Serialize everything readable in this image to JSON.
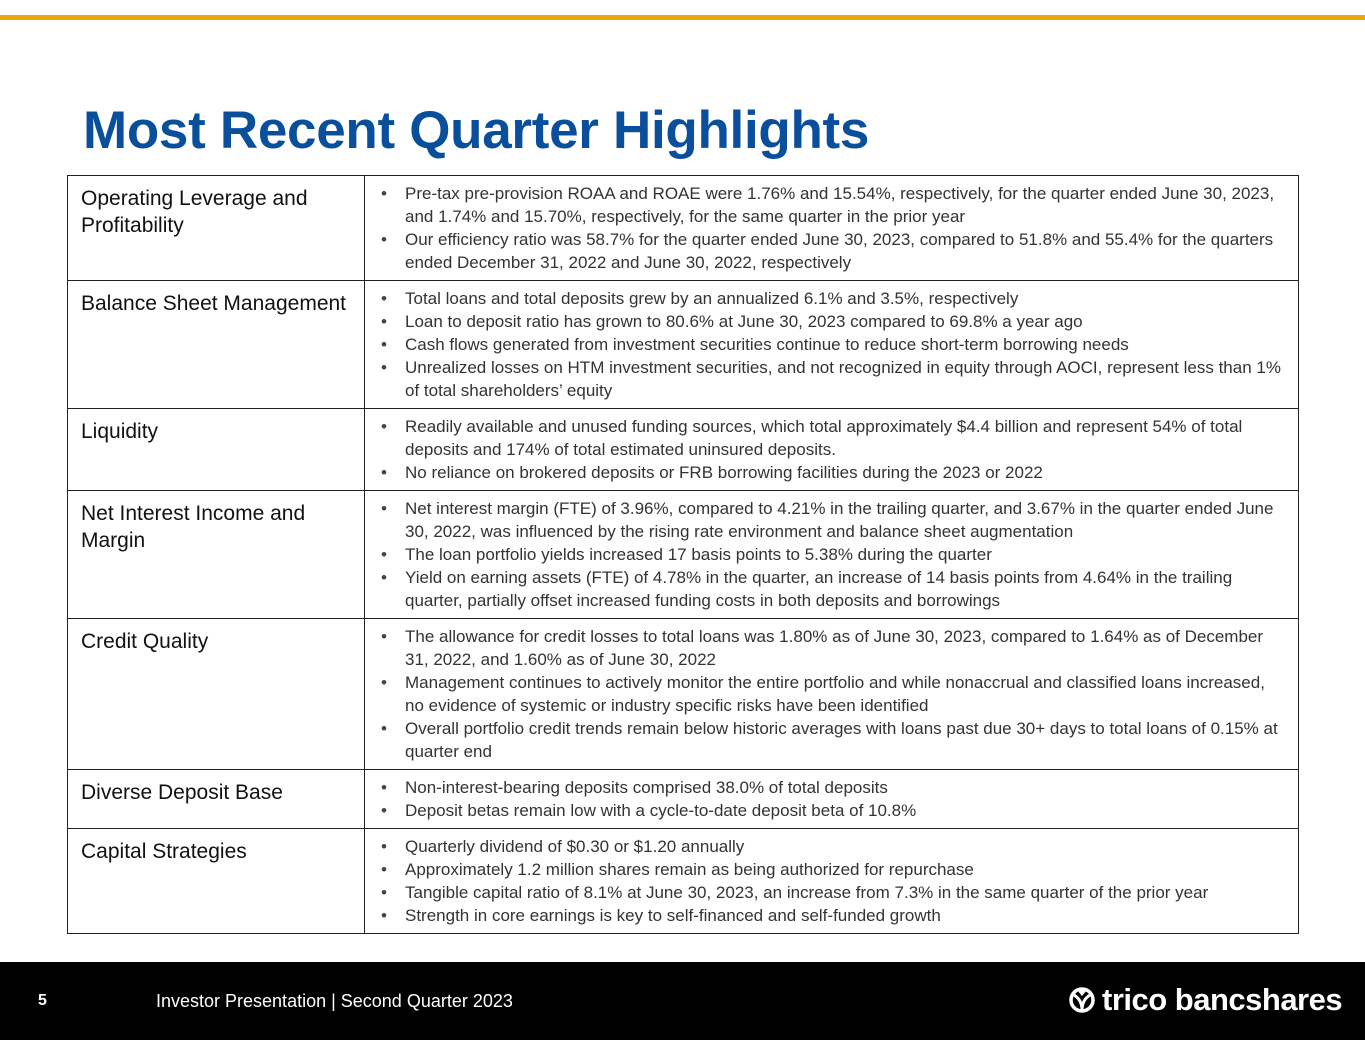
{
  "title": "Most Recent Quarter Highlights",
  "rows": [
    {
      "label": "Operating Leverage and Profitability",
      "bullets": [
        "Pre-tax pre-provision ROAA and ROAE were 1.76% and 15.54%, respectively, for the quarter ended June 30, 2023, and 1.74% and 15.70%, respectively, for the same quarter in the prior year",
        "Our efficiency ratio was 58.7% for the quarter ended June 30, 2023, compared to 51.8% and 55.4% for the quarters ended December 31, 2022 and June 30, 2022, respectively"
      ]
    },
    {
      "label": "Balance Sheet Management",
      "bullets": [
        "Total loans and total deposits grew by an annualized 6.1% and 3.5%, respectively",
        "Loan to deposit ratio has grown to 80.6% at June 30, 2023 compared to 69.8% a year ago",
        "Cash flows generated from investment securities continue to reduce short-term borrowing needs",
        "Unrealized losses on HTM investment securities, and not recognized in equity through AOCI, represent less than 1% of total shareholders’ equity"
      ]
    },
    {
      "label": "Liquidity",
      "bullets": [
        "Readily available and unused funding sources, which total approximately $4.4 billion and represent 54% of total deposits and 174% of total estimated uninsured deposits.",
        "No reliance on brokered deposits or FRB borrowing facilities during the 2023 or 2022"
      ]
    },
    {
      "label": "Net Interest Income and Margin",
      "bullets": [
        "Net interest margin (FTE) of 3.96%, compared to 4.21% in the trailing quarter, and 3.67% in the quarter ended June 30, 2022, was influenced by the rising rate environment and balance sheet augmentation",
        "The loan portfolio yields increased 17 basis points to 5.38% during the quarter",
        "Yield on earning assets (FTE) of 4.78% in the quarter, an increase of 14 basis points from 4.64% in the trailing quarter, partially offset increased funding costs in both deposits and borrowings"
      ]
    },
    {
      "label": "Credit Quality",
      "bullets": [
        "The allowance for credit losses to total loans was 1.80% as of June 30, 2023, compared to 1.64% as of December 31, 2022, and 1.60% as of June 30, 2022",
        "Management continues to actively monitor the entire portfolio and while nonaccrual and classified loans increased, no evidence of systemic or industry specific risks have been identified",
        "Overall portfolio credit trends remain below historic averages with loans past due 30+ days to total loans of 0.15% at quarter end"
      ]
    },
    {
      "label": "Diverse Deposit Base",
      "bullets": [
        "Non-interest-bearing deposits comprised 38.0% of total deposits",
        "Deposit betas remain low with a cycle-to-date deposit beta of 10.8%"
      ]
    },
    {
      "label": "Capital Strategies",
      "bullets": [
        "Quarterly dividend of $0.30 or $1.20 annually",
        "Approximately 1.2 million shares remain as being authorized for repurchase",
        "Tangible capital ratio of 8.1% at June 30, 2023, an increase from 7.3% in the same quarter of the prior year",
        "Strength in core earnings is key to self-financed and self-funded growth"
      ]
    }
  ],
  "footer": {
    "page_number": "5",
    "text": "Investor Presentation | Second Quarter 2023",
    "logo_text": "trico bancshares"
  },
  "colors": {
    "title": "#0a4f9c",
    "accent": "#e8a90f",
    "footer_bg": "#000000"
  }
}
